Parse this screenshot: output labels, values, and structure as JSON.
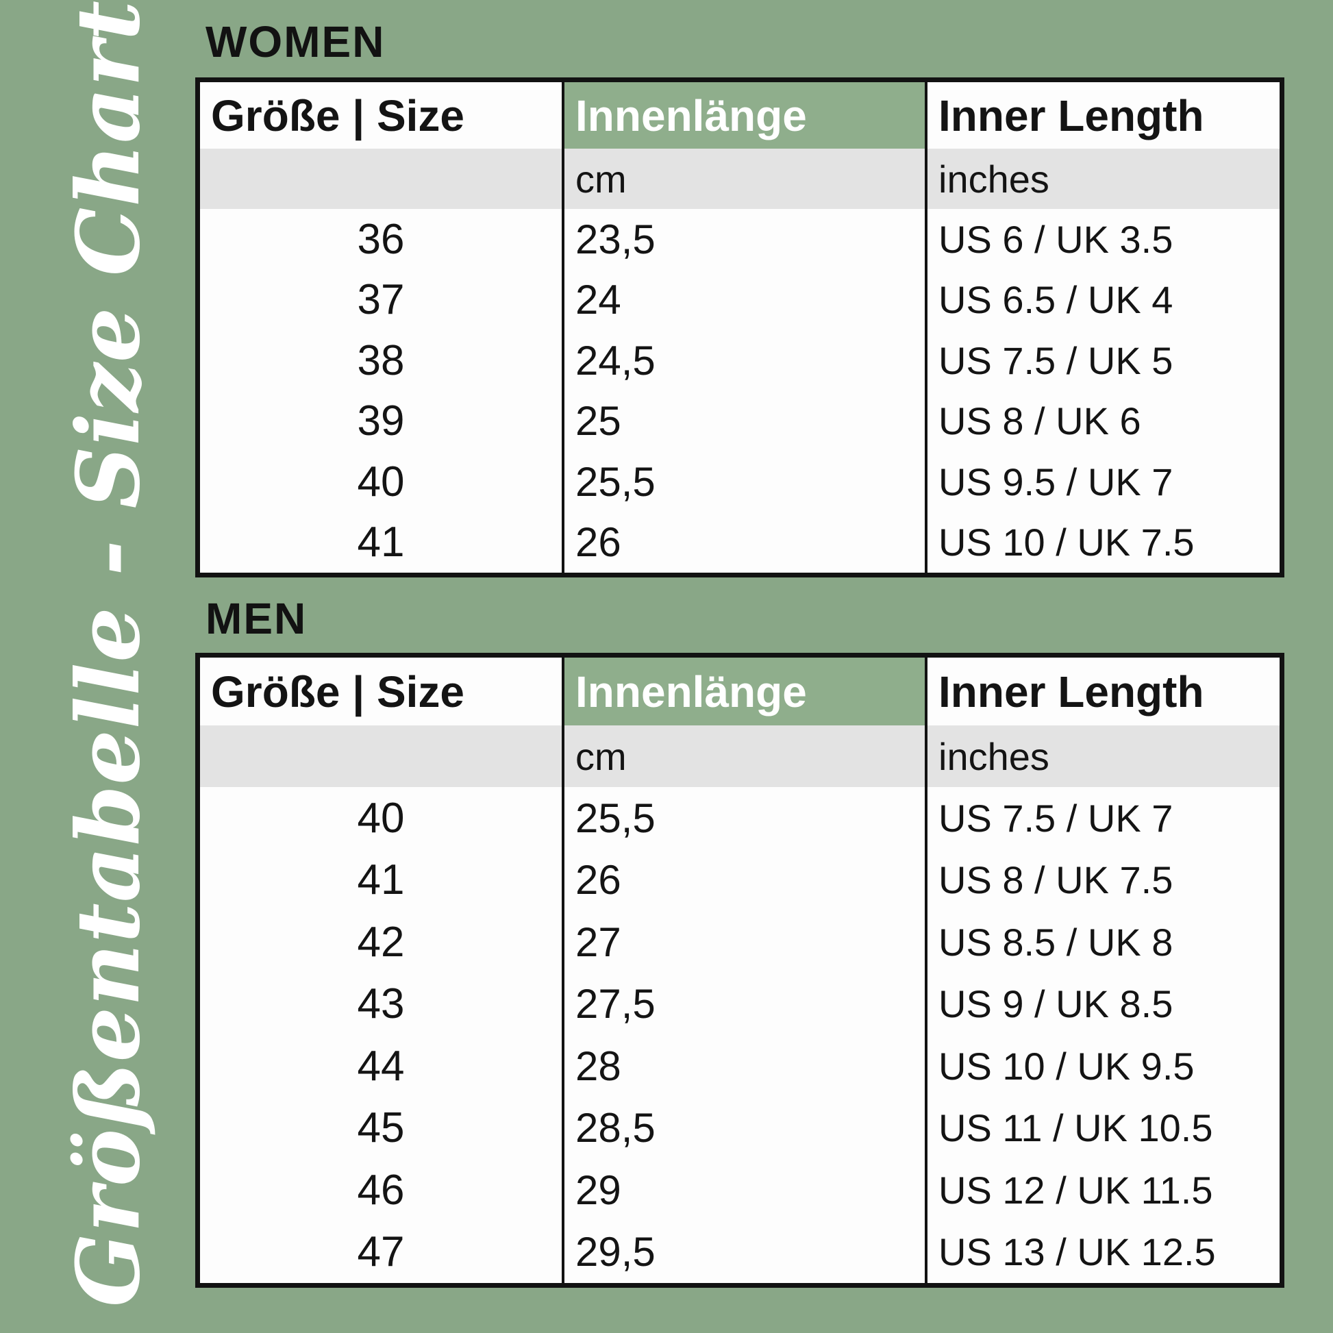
{
  "page": {
    "vertical_title": "Größentabelle - Size Chart",
    "colors": {
      "background_green": "#89a787",
      "header_cell_green": "#8fae8c",
      "unit_row_gray": "#e3e3e3",
      "table_white": "#fdfdfd",
      "border_black": "#121212",
      "text_black": "#141414",
      "text_white": "#ffffff"
    }
  },
  "headers": {
    "size": "Größe | Size",
    "inner_length_de": "Innenlänge",
    "inner_length_en": "Inner Length",
    "unit_cm": "cm",
    "unit_inches": "inches"
  },
  "women": {
    "section_label": "WOMEN",
    "rows": [
      {
        "size": "36",
        "cm": "23,5",
        "inches": "US 6 / UK 3.5"
      },
      {
        "size": "37",
        "cm": "24",
        "inches": "US 6.5 / UK 4"
      },
      {
        "size": "38",
        "cm": "24,5",
        "inches": "US 7.5 / UK 5"
      },
      {
        "size": "39",
        "cm": "25",
        "inches": "US 8 / UK 6"
      },
      {
        "size": "40",
        "cm": "25,5",
        "inches": "US 9.5 / UK 7"
      },
      {
        "size": "41",
        "cm": "26",
        "inches": "US 10 / UK 7.5"
      }
    ]
  },
  "men": {
    "section_label": "MEN",
    "rows": [
      {
        "size": "40",
        "cm": "25,5",
        "inches": "US 7.5 / UK 7"
      },
      {
        "size": "41",
        "cm": "26",
        "inches": "US 8 / UK 7.5"
      },
      {
        "size": "42",
        "cm": "27",
        "inches": "US 8.5 / UK 8"
      },
      {
        "size": "43",
        "cm": "27,5",
        "inches": "US 9 / UK 8.5"
      },
      {
        "size": "44",
        "cm": "28",
        "inches": "US 10 / UK 9.5"
      },
      {
        "size": "45",
        "cm": "28,5",
        "inches": "US 11 / UK 10.5"
      },
      {
        "size": "46",
        "cm": "29",
        "inches": "US 12 / UK 11.5"
      },
      {
        "size": "47",
        "cm": "29,5",
        "inches": "US 13 / UK 12.5"
      }
    ]
  },
  "chart_data": [
    {
      "type": "table",
      "title": "WOMEN",
      "columns": [
        "Größe | Size",
        "Innenlänge cm",
        "Inner Length inches"
      ],
      "rows": [
        [
          "36",
          "23,5",
          "US 6 / UK 3.5"
        ],
        [
          "37",
          "24",
          "US 6.5 / UK 4"
        ],
        [
          "38",
          "24,5",
          "US 7.5 / UK 5"
        ],
        [
          "39",
          "25",
          "US 8 / UK 6"
        ],
        [
          "40",
          "25,5",
          "US 9.5 / UK 7"
        ],
        [
          "41",
          "26",
          "US 10 / UK 7.5"
        ]
      ]
    },
    {
      "type": "table",
      "title": "MEN",
      "columns": [
        "Größe | Size",
        "Innenlänge cm",
        "Inner Length inches"
      ],
      "rows": [
        [
          "40",
          "25,5",
          "US 7.5 / UK 7"
        ],
        [
          "41",
          "26",
          "US 8 / UK 7.5"
        ],
        [
          "42",
          "27",
          "US 8.5 / UK 8"
        ],
        [
          "43",
          "27,5",
          "US 9 / UK 8.5"
        ],
        [
          "44",
          "28",
          "US 10 / UK 9.5"
        ],
        [
          "45",
          "28,5",
          "US 11 / UK 10.5"
        ],
        [
          "46",
          "29",
          "US 12 / UK 11.5"
        ],
        [
          "47",
          "29,5",
          "US 13 / UK 12.5"
        ]
      ]
    }
  ]
}
